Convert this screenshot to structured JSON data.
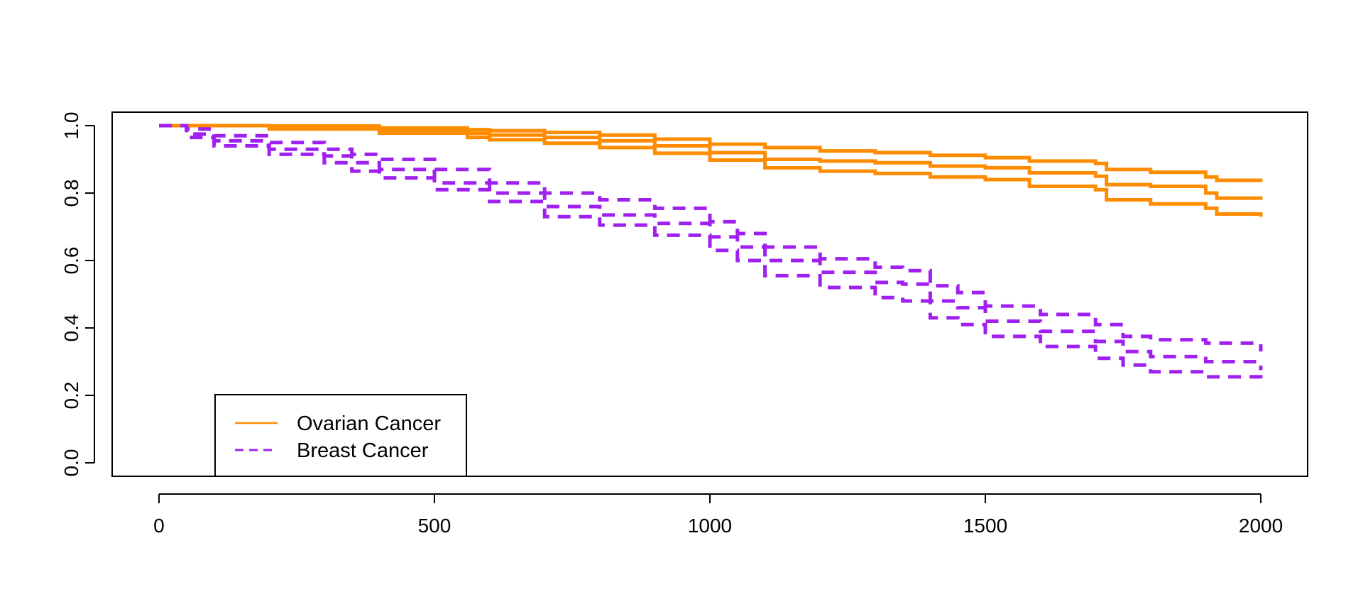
{
  "chart_data": {
    "type": "line",
    "title": "",
    "xlabel": "",
    "ylabel": "",
    "xlim": [
      -85,
      2085
    ],
    "ylim": [
      -0.04,
      1.04
    ],
    "xticks": [
      0,
      500,
      1000,
      1500,
      2000
    ],
    "xtick_labels": [
      "0",
      "500",
      "1000",
      "1500",
      "2000"
    ],
    "yticks": [
      0,
      0.2,
      0.4,
      0.6,
      0.8,
      1
    ],
    "ytick_labels": [
      "0.0",
      "0.2",
      "0.4",
      "0.6",
      "0.8",
      "1.0"
    ],
    "grid": false,
    "legend": {
      "position": "bottom-left",
      "entries": [
        {
          "label": "Ovarian Cancer",
          "color": "#FF8C00",
          "style": "solid"
        },
        {
          "label": "Breast Cancer",
          "color": "#A020F0",
          "style": "dashed"
        }
      ]
    },
    "series": [
      {
        "name": "Ovarian Cancer",
        "color": "#FF8C00",
        "style": "solid",
        "x": [
          0,
          200,
          400,
          560,
          600,
          700,
          800,
          900,
          1000,
          1100,
          1200,
          1300,
          1400,
          1500,
          1580,
          1700,
          1720,
          1800,
          1900,
          1920,
          2000
        ],
        "estimate": [
          1.0,
          0.995,
          0.985,
          0.977,
          0.972,
          0.965,
          0.955,
          0.94,
          0.92,
          0.9,
          0.895,
          0.89,
          0.88,
          0.875,
          0.86,
          0.85,
          0.825,
          0.82,
          0.8,
          0.785,
          0.78
        ],
        "lower": [
          1.0,
          0.99,
          0.978,
          0.965,
          0.958,
          0.948,
          0.935,
          0.918,
          0.898,
          0.875,
          0.865,
          0.858,
          0.848,
          0.84,
          0.82,
          0.81,
          0.78,
          0.768,
          0.755,
          0.738,
          0.73
        ],
        "upper": [
          1.0,
          0.999,
          0.993,
          0.988,
          0.985,
          0.98,
          0.972,
          0.96,
          0.945,
          0.935,
          0.925,
          0.92,
          0.912,
          0.905,
          0.895,
          0.888,
          0.87,
          0.862,
          0.848,
          0.838,
          0.833
        ]
      },
      {
        "name": "Breast Cancer",
        "color": "#A020F0",
        "style": "dashed",
        "x": [
          0,
          50,
          100,
          200,
          300,
          350,
          400,
          500,
          600,
          700,
          800,
          900,
          1000,
          1050,
          1100,
          1200,
          1300,
          1350,
          1400,
          1450,
          1500,
          1600,
          1700,
          1750,
          1800,
          1900,
          2000
        ],
        "estimate": [
          1.0,
          0.975,
          0.955,
          0.93,
          0.91,
          0.89,
          0.87,
          0.83,
          0.8,
          0.76,
          0.735,
          0.71,
          0.67,
          0.64,
          0.6,
          0.565,
          0.535,
          0.53,
          0.48,
          0.46,
          0.42,
          0.39,
          0.36,
          0.33,
          0.315,
          0.3,
          0.275
        ],
        "lower": [
          1.0,
          0.965,
          0.94,
          0.915,
          0.89,
          0.865,
          0.845,
          0.81,
          0.775,
          0.73,
          0.705,
          0.675,
          0.63,
          0.6,
          0.555,
          0.52,
          0.49,
          0.48,
          0.43,
          0.41,
          0.375,
          0.345,
          0.31,
          0.29,
          0.27,
          0.255,
          0.225
        ],
        "upper": [
          1.0,
          0.99,
          0.97,
          0.95,
          0.93,
          0.915,
          0.9,
          0.87,
          0.83,
          0.8,
          0.78,
          0.755,
          0.715,
          0.68,
          0.64,
          0.605,
          0.58,
          0.57,
          0.525,
          0.505,
          0.465,
          0.44,
          0.41,
          0.375,
          0.365,
          0.355,
          0.33
        ]
      }
    ]
  }
}
